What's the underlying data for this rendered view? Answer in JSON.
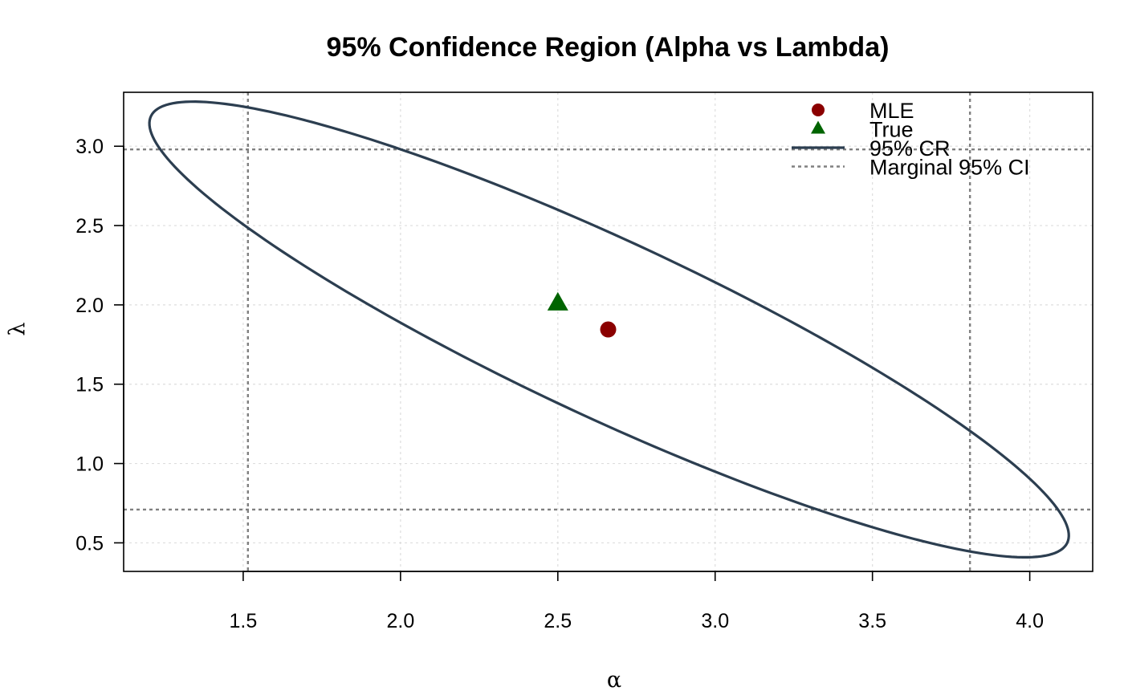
{
  "chart_data": {
    "type": "scatter",
    "title": "95% Confidence Region (Alpha vs Lambda)",
    "xlabel": "α",
    "ylabel": "λ",
    "xlim": [
      1.12,
      4.2
    ],
    "ylim": [
      0.32,
      3.34
    ],
    "x_ticks": [
      {
        "value": 1.5,
        "label": "1.5"
      },
      {
        "value": 2.0,
        "label": "2.0"
      },
      {
        "value": 2.5,
        "label": "2.5"
      },
      {
        "value": 3.0,
        "label": "3.0"
      },
      {
        "value": 3.5,
        "label": "3.5"
      },
      {
        "value": 4.0,
        "label": "4.0"
      }
    ],
    "y_ticks": [
      {
        "value": 0.5,
        "label": "0.5"
      },
      {
        "value": 1.0,
        "label": "1.0"
      },
      {
        "value": 1.5,
        "label": "1.5"
      },
      {
        "value": 2.0,
        "label": "2.0"
      },
      {
        "value": 2.5,
        "label": "2.5"
      },
      {
        "value": 3.0,
        "label": "3.0"
      }
    ],
    "grid": true,
    "points": {
      "mle": {
        "x": 2.66,
        "y": 1.845
      },
      "true": {
        "x": 2.5,
        "y": 2.01
      }
    },
    "confidence_region": {
      "center": [
        2.663,
        1.845
      ],
      "extreme_low_alpha": [
        1.235,
        3.245
      ],
      "extreme_high_alpha": [
        4.09,
        0.445
      ],
      "half_width_at_center": 0.32
    },
    "marginal_ci": {
      "alpha": [
        1.515,
        3.81
      ],
      "lambda": [
        0.71,
        2.98
      ]
    },
    "colors": {
      "mle": "#8B0000",
      "true": "#006400",
      "region": "#2C3E50",
      "ci": "#808080",
      "grid": "#DDDDDD"
    },
    "legend": {
      "position": "top-right",
      "items": [
        {
          "label": "MLE",
          "symbol": "circle"
        },
        {
          "label": "True",
          "symbol": "triangle"
        },
        {
          "label": "95% CR",
          "symbol": "line"
        },
        {
          "label": "Marginal 95% CI",
          "symbol": "dashed-line"
        }
      ]
    }
  }
}
